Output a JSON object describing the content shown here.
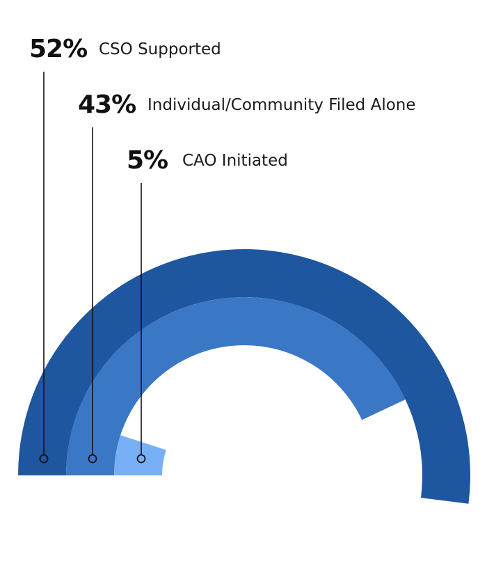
{
  "chart_data": {
    "type": "pie",
    "subtype": "radial-bar",
    "series": [
      {
        "name": "CSO Supported",
        "value": 52,
        "value_label": "52%",
        "color": "#1e56a0"
      },
      {
        "name": "Individual/Community Filed Alone",
        "value": 43,
        "value_label": "43%",
        "color": "#3a78c6"
      },
      {
        "name": "CAO Initiated",
        "value": 5,
        "value_label": "5%",
        "color": "#78b0f8"
      }
    ],
    "unit": "%",
    "legend": "stacked-left-with-leader-lines"
  }
}
